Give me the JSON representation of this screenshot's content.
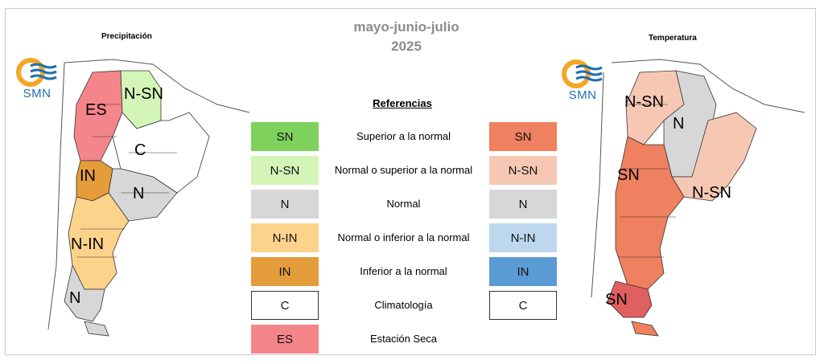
{
  "title": {
    "line1": "mayo-junio-julio",
    "line2": "2025"
  },
  "precipitation": {
    "caption": "Precipitación",
    "regions": [
      {
        "name": "es",
        "label": "ES"
      },
      {
        "name": "n-sn",
        "label": "N-SN"
      },
      {
        "name": "c",
        "label": "C"
      },
      {
        "name": "in",
        "label": "IN"
      },
      {
        "name": "n",
        "label": "N"
      },
      {
        "name": "n-in",
        "label": "N-IN"
      },
      {
        "name": "n-south",
        "label": "N"
      }
    ]
  },
  "temperature": {
    "caption": "Temperatura",
    "regions": [
      {
        "name": "n-sn-north",
        "label": "N-SN"
      },
      {
        "name": "n",
        "label": "N"
      },
      {
        "name": "sn",
        "label": "SN"
      },
      {
        "name": "n-sn-east",
        "label": "N-SN"
      },
      {
        "name": "sn-south",
        "label": "SN"
      }
    ]
  },
  "logo": {
    "text": "SMN"
  },
  "legend": {
    "title": "Referencias",
    "rows": [
      {
        "code": "SN",
        "description": "Superior a la normal",
        "precip_color": "#7ed15c",
        "temp_color": "#ef8060"
      },
      {
        "code": "N-SN",
        "description": "Normal o superior a la normal",
        "precip_color": "#d4f5b8",
        "temp_color": "#f6c8b4"
      },
      {
        "code": "N",
        "description": "Normal",
        "precip_color": "#d7d7d7",
        "temp_color": "#d7d7d7"
      },
      {
        "code": "N-IN",
        "description": "Normal o inferior a la normal",
        "precip_color": "#fdd28a",
        "temp_color": "#bdd7ee"
      },
      {
        "code": "IN",
        "description": "Inferior a la normal",
        "precip_color": "#e59c3a",
        "temp_color": "#5b9bd5"
      },
      {
        "code": "C",
        "description": "Climatología",
        "precip_color": "#ffffff",
        "temp_color": "#ffffff"
      },
      {
        "code": "ES",
        "description": "Estación Seca",
        "precip_color": "#f4858a",
        "temp_color": ""
      }
    ]
  },
  "colors": {
    "title_gray": "#8c8c8c",
    "logo_orange": "#f5a623",
    "logo_blue": "#1f6fb2",
    "border": "#333333"
  }
}
